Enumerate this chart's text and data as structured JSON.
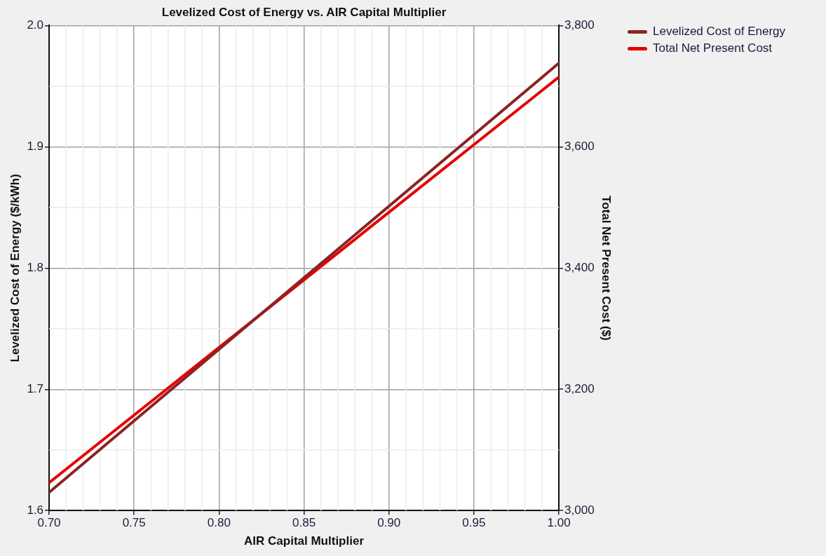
{
  "chart_data": {
    "type": "line",
    "title": "Levelized Cost of Energy vs. AIR Capital Multiplier",
    "xlabel": "AIR Capital Multiplier",
    "ylabel": "Levelized Cost of Energy ($/kWh)",
    "y2label": "Total Net Present Cost ($)",
    "x": [
      0.7,
      1.0
    ],
    "series": [
      {
        "name": "Levelized Cost of Energy",
        "color": "#8b2323",
        "values": [
          1.615,
          1.969
        ]
      },
      {
        "name": "Total Net Present Cost",
        "color": "#e60000",
        "values": [
          3046,
          3715
        ],
        "axis": "y2"
      }
    ],
    "xlim": [
      0.7,
      1.0
    ],
    "xticks": [
      {
        "value": 0.7,
        "label": "0.70"
      },
      {
        "value": 0.75,
        "label": "0.75"
      },
      {
        "value": 0.8,
        "label": "0.80"
      },
      {
        "value": 0.85,
        "label": "0.85"
      },
      {
        "value": 0.9,
        "label": "0.90"
      },
      {
        "value": 0.95,
        "label": "0.95"
      },
      {
        "value": 1.0,
        "label": "1.00"
      }
    ],
    "ylim": [
      1.6,
      2.0
    ],
    "yticks": [
      1.6,
      1.7,
      1.8,
      1.9,
      {
        "value": 2.0,
        "label": "2.0"
      }
    ],
    "y2lim": [
      3000,
      3800
    ],
    "y2ticks": [
      {
        "value": 3000,
        "label": "3,000"
      },
      {
        "value": 3200,
        "label": "3,200"
      },
      {
        "value": 3400,
        "label": "3,400"
      },
      {
        "value": 3600,
        "label": "3,600"
      },
      {
        "value": 3800,
        "label": "3,800"
      }
    ],
    "grid": true,
    "legend": "top right",
    "marker": "none",
    "line_style": "solid"
  }
}
